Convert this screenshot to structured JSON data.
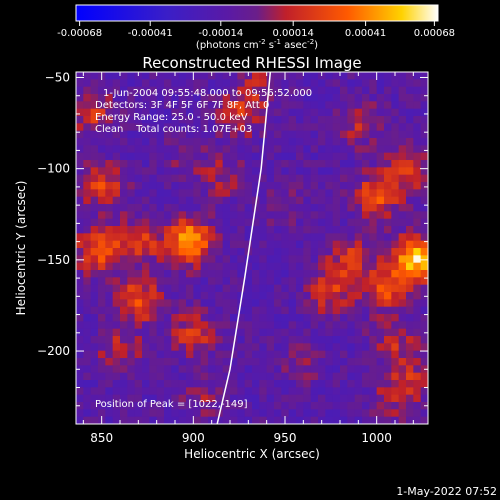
{
  "colorbar": {
    "ticks": [
      "-0.00068",
      "-0.00041",
      "-0.00014",
      "0.00014",
      "0.00041",
      "0.00068"
    ],
    "units_main": "(photons cm",
    "units_exp1": "-2",
    "units_mid": " s",
    "units_exp2": "-1",
    "units_asec": " asec",
    "units_exp3": "-2",
    "units_end": ")"
  },
  "chart_data": {
    "type": "heatmap",
    "title": "Reconstructed RHESSI Image",
    "xlabel": "Heliocentric X (arcsec)",
    "ylabel": "Heliocentric Y (arcsec)",
    "xlim": [
      836,
      1028
    ],
    "ylim": [
      -240,
      -47
    ],
    "x_ticks": [
      850,
      900,
      950,
      1000
    ],
    "y_ticks": [
      -50,
      -100,
      -150,
      -200
    ],
    "color_range": [
      -0.00068,
      0.00068
    ],
    "annotations": [
      "1-Jun-2004 09:55:48.000 to 09:56:52.000",
      "Detectors: 3F 4F 5F 6F 7F 8F, Att 0",
      "Energy Range: 25.0 - 50.0 keV",
      "Clean    Total counts: 1.07E+03",
      "Position of Peak = [1022,-149]"
    ],
    "hotspots": [
      {
        "x": 845,
        "y": -70,
        "value": 0.0003
      },
      {
        "x": 850,
        "y": -110,
        "value": 0.00035
      },
      {
        "x": 848,
        "y": -145,
        "value": 0.0004
      },
      {
        "x": 870,
        "y": -140,
        "value": 0.00035
      },
      {
        "x": 898,
        "y": -140,
        "value": 0.0006
      },
      {
        "x": 870,
        "y": -172,
        "value": 0.0004
      },
      {
        "x": 900,
        "y": -190,
        "value": 0.0003
      },
      {
        "x": 860,
        "y": -200,
        "value": 0.00025
      },
      {
        "x": 925,
        "y": -70,
        "value": 0.0003
      },
      {
        "x": 935,
        "y": -55,
        "value": 0.0002
      },
      {
        "x": 915,
        "y": -105,
        "value": 0.0002
      },
      {
        "x": 990,
        "y": -75,
        "value": 0.00025
      },
      {
        "x": 1000,
        "y": -115,
        "value": 0.0004
      },
      {
        "x": 985,
        "y": -150,
        "value": 0.0003
      },
      {
        "x": 1022,
        "y": -149,
        "value": 0.00068
      },
      {
        "x": 1018,
        "y": -100,
        "value": 0.00035
      },
      {
        "x": 1005,
        "y": -165,
        "value": 0.0004
      },
      {
        "x": 975,
        "y": -168,
        "value": 0.0003
      },
      {
        "x": 1010,
        "y": -195,
        "value": 0.00025
      },
      {
        "x": 1020,
        "y": -215,
        "value": 0.0002
      },
      {
        "x": 905,
        "y": -225,
        "value": 0.00015
      },
      {
        "x": 950,
        "y": -120,
        "value": 0.00012
      },
      {
        "x": 960,
        "y": -205,
        "value": 0.00015
      },
      {
        "x": 895,
        "y": -95,
        "value": 0.0001
      },
      {
        "x": 1010,
        "y": -225,
        "value": 0.0002
      }
    ],
    "limb_curve": [
      {
        "x": 942,
        "y": -47
      },
      {
        "x": 937,
        "y": -100
      },
      {
        "x": 928,
        "y": -160
      },
      {
        "x": 920,
        "y": -210
      },
      {
        "x": 913,
        "y": -240
      }
    ]
  },
  "footer": {
    "date": "1-May-2022 07:52"
  }
}
